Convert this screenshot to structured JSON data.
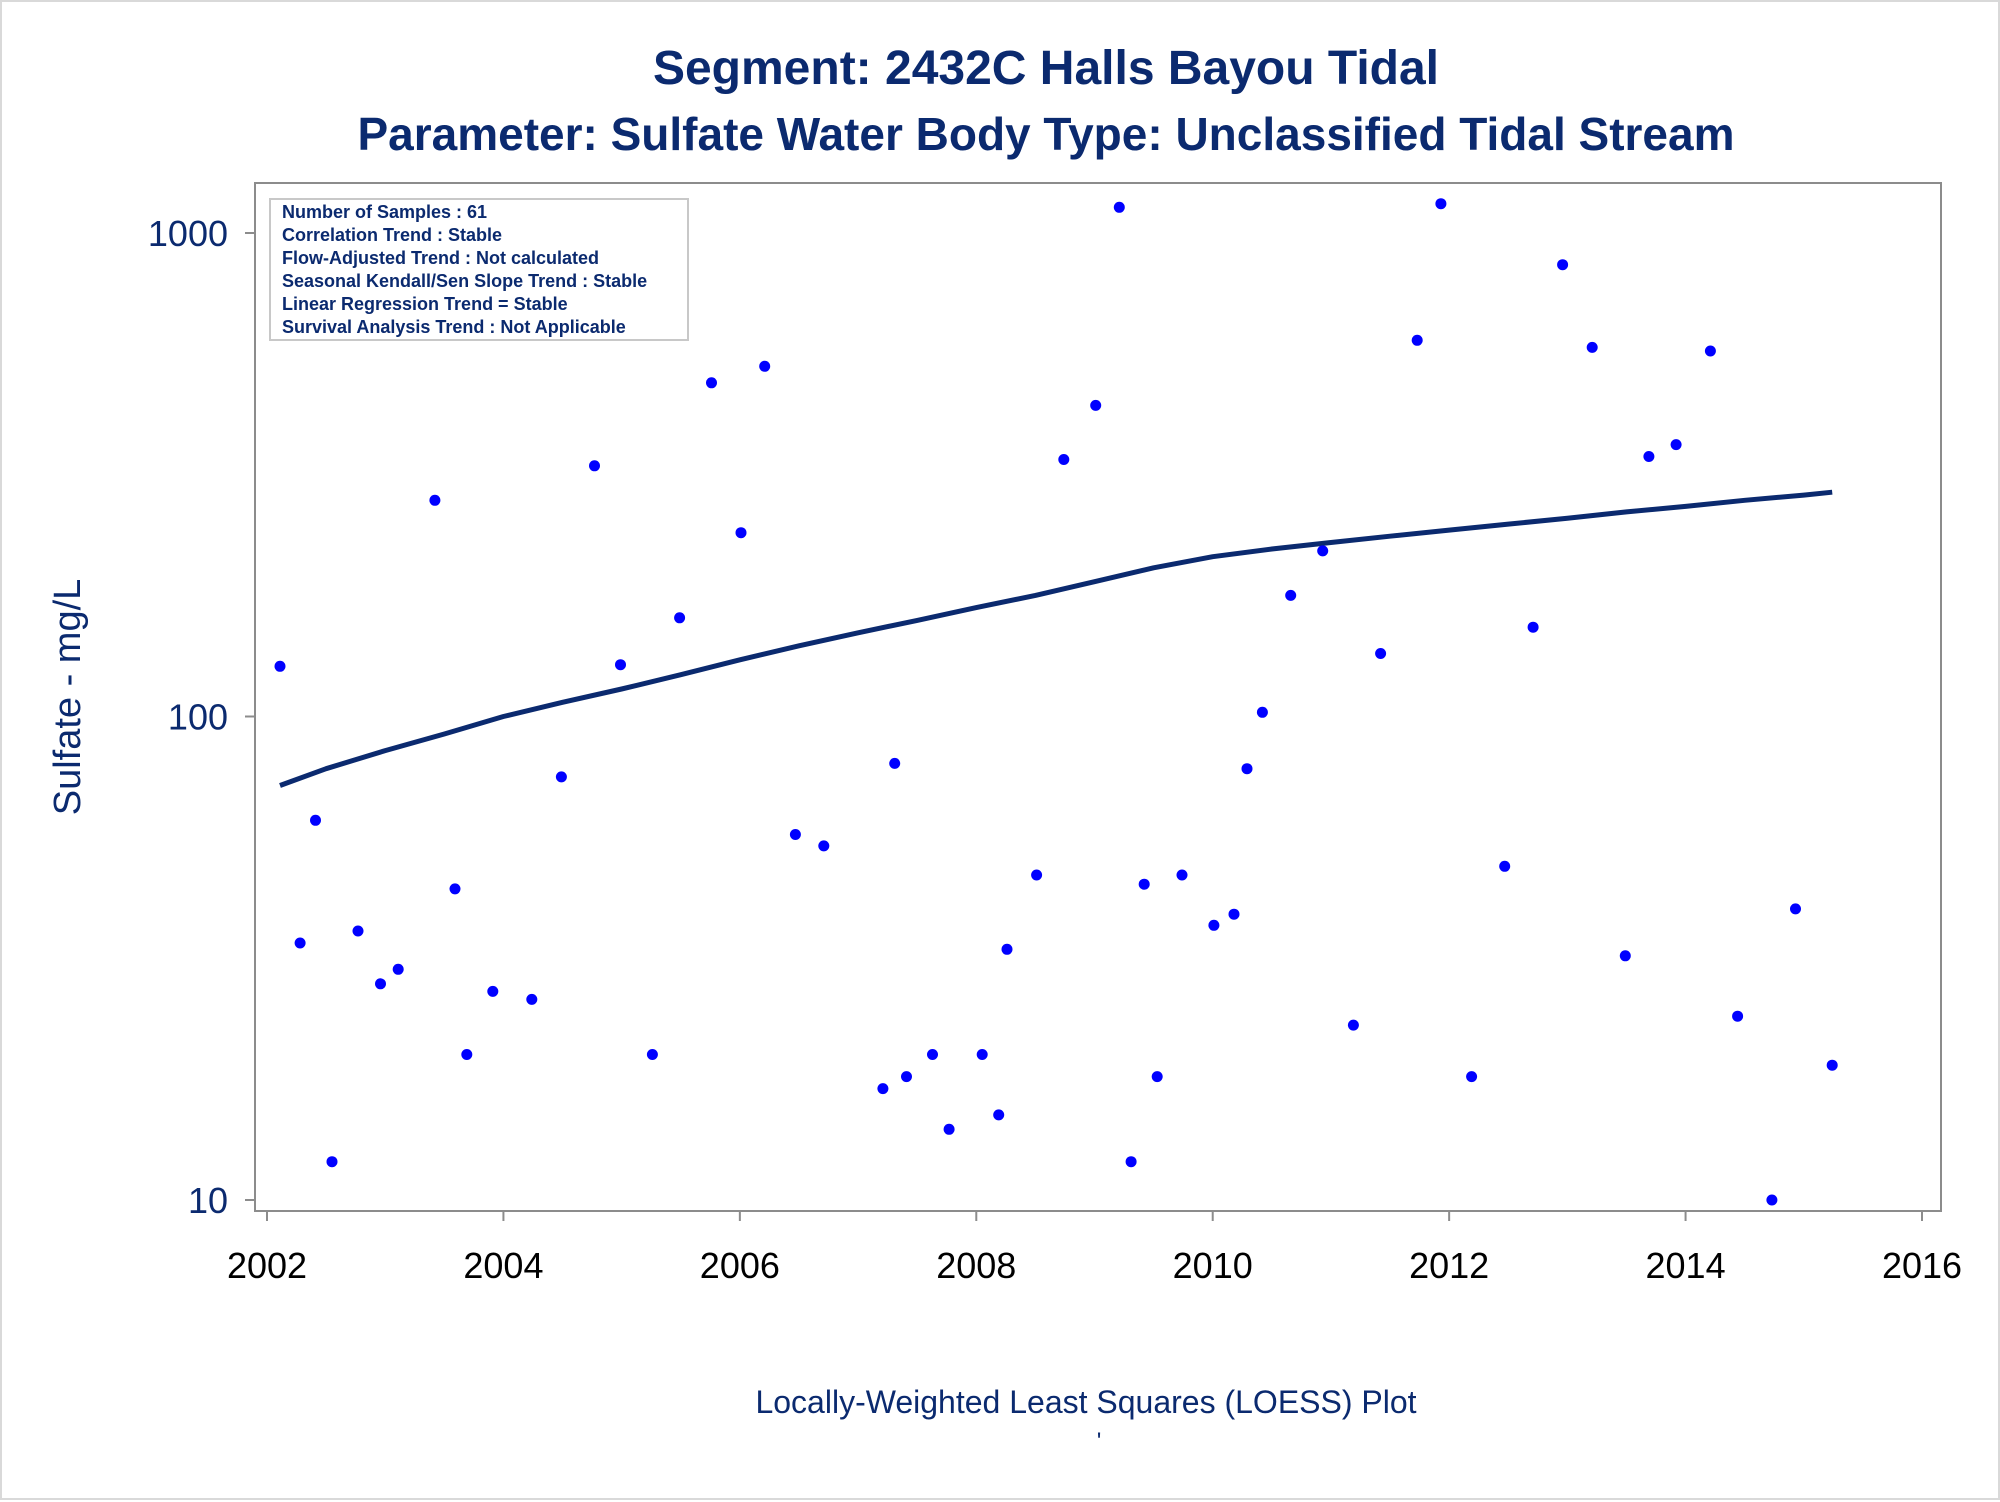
{
  "chart_data": {
    "type": "scatter",
    "title": "Segment: 2432C  Halls Bayou Tidal",
    "subtitle": "Parameter: Sulfate   Water Body Type: Unclassified Tidal Stream",
    "xlabel": "",
    "ylabel": "Sulfate - mg/L",
    "footnote": "Locally-Weighted Least Squares (LOESS) Plot",
    "footnote_mark": "'",
    "x_scale": "linear (year)",
    "y_scale": "log10",
    "xlim": [
      2002,
      2016
    ],
    "ylim": [
      10,
      1300
    ],
    "x_ticks": [
      "2002",
      "2004",
      "2006",
      "2008",
      "2010",
      "2012",
      "2014",
      "2016"
    ],
    "y_ticks": [
      "10",
      "100",
      "1000"
    ],
    "grid": false,
    "legend_placement": "top-left inset",
    "stats_box": [
      "Number of Samples : 61",
      "Correlation Trend : Stable",
      "Flow-Adjusted Trend : Not calculated",
      "Seasonal Kendall/Sen Slope Trend : Stable",
      "Linear Regression Trend = Stable",
      "Survival Analysis Trend : Not Applicable"
    ],
    "colors": {
      "points": "#0000ff",
      "loess": "#0b2a6f",
      "text": "#0b2a6f",
      "axis": "#8c8c8c"
    },
    "series": [
      {
        "type": "scatter",
        "points": [
          [
            2002.11,
            127
          ],
          [
            2002.28,
            34
          ],
          [
            2002.41,
            61
          ],
          [
            2002.55,
            12
          ],
          [
            2002.77,
            36
          ],
          [
            2002.96,
            28
          ],
          [
            2003.11,
            30
          ],
          [
            2003.42,
            280
          ],
          [
            2003.59,
            44
          ],
          [
            2003.69,
            20
          ],
          [
            2003.91,
            27
          ],
          [
            2004.24,
            26
          ],
          [
            2004.49,
            75
          ],
          [
            2004.77,
            330
          ],
          [
            2004.99,
            128
          ],
          [
            2005.26,
            20
          ],
          [
            2005.49,
            160
          ],
          [
            2005.76,
            490
          ],
          [
            2006.01,
            240
          ],
          [
            2006.21,
            530
          ],
          [
            2006.47,
            57
          ],
          [
            2006.71,
            54
          ],
          [
            2007.21,
            17
          ],
          [
            2007.31,
            80
          ],
          [
            2007.41,
            18
          ],
          [
            2007.63,
            20
          ],
          [
            2007.77,
            14
          ],
          [
            2008.05,
            20
          ],
          [
            2008.19,
            15
          ],
          [
            2008.26,
            33
          ],
          [
            2008.51,
            47
          ],
          [
            2008.74,
            340
          ],
          [
            2009.01,
            440
          ],
          [
            2009.21,
            1130
          ],
          [
            2009.31,
            12
          ],
          [
            2009.42,
            45
          ],
          [
            2009.53,
            18
          ],
          [
            2009.74,
            47
          ],
          [
            2010.01,
            37
          ],
          [
            2010.18,
            39
          ],
          [
            2010.29,
            78
          ],
          [
            2010.42,
            102
          ],
          [
            2010.66,
            178
          ],
          [
            2010.93,
            220
          ],
          [
            2011.19,
            23
          ],
          [
            2011.42,
            135
          ],
          [
            2011.73,
            600
          ],
          [
            2011.93,
            1150
          ],
          [
            2012.19,
            18
          ],
          [
            2012.47,
            49
          ],
          [
            2012.71,
            153
          ],
          [
            2012.96,
            860
          ],
          [
            2013.21,
            580
          ],
          [
            2013.49,
            32
          ],
          [
            2013.69,
            345
          ],
          [
            2013.92,
            365
          ],
          [
            2014.21,
            570
          ],
          [
            2014.44,
            24
          ],
          [
            2014.73,
            10
          ],
          [
            2014.93,
            40
          ],
          [
            2015.24,
            19
          ]
        ]
      },
      {
        "type": "line",
        "name": "LOESS",
        "points": [
          [
            2002.11,
            72
          ],
          [
            2002.5,
            78
          ],
          [
            2003.0,
            85
          ],
          [
            2003.5,
            92
          ],
          [
            2004.0,
            100
          ],
          [
            2004.5,
            107
          ],
          [
            2005.0,
            114
          ],
          [
            2005.5,
            122
          ],
          [
            2006.0,
            131
          ],
          [
            2006.5,
            140
          ],
          [
            2007.0,
            149
          ],
          [
            2007.5,
            158
          ],
          [
            2008.0,
            168
          ],
          [
            2008.5,
            178
          ],
          [
            2009.0,
            190
          ],
          [
            2009.5,
            203
          ],
          [
            2010.0,
            214
          ],
          [
            2010.5,
            222
          ],
          [
            2011.0,
            229
          ],
          [
            2011.5,
            236
          ],
          [
            2012.0,
            243
          ],
          [
            2012.5,
            250
          ],
          [
            2013.0,
            257
          ],
          [
            2013.5,
            265
          ],
          [
            2014.0,
            272
          ],
          [
            2014.5,
            280
          ],
          [
            2015.0,
            287
          ],
          [
            2015.24,
            291
          ]
        ]
      }
    ]
  }
}
